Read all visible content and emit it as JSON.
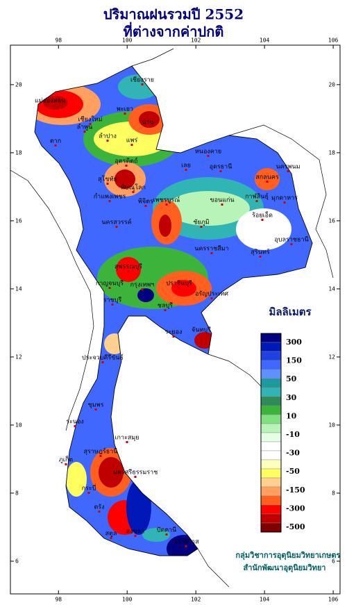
{
  "header": {
    "title": "ปริมาณฝนรวมปี 2552",
    "subtitle": "ที่ต่างจากค่าปกติ"
  },
  "map": {
    "xlim": [
      96.6,
      106.2
    ],
    "ylim": [
      5.04,
      21.16
    ],
    "xticks": [
      98,
      100,
      102,
      104,
      106
    ],
    "yticks": [
      20,
      18,
      16,
      14,
      12,
      10,
      8,
      6
    ],
    "places": [
      "เชียงราย",
      "แม่ฮ่องสอน",
      "เชียงใหม่",
      "พะเยา",
      "น่าน",
      "ลำพูน",
      "ลำปาง",
      "แพร่",
      "ตาก",
      "อุตรดิตถ์",
      "หนองคาย",
      "อุดรธานี",
      "เลย",
      "สกลนคร",
      "นครพนม",
      "มุกดาหาร",
      "สุโขทัย",
      "พิษณุโลก",
      "กำแพงเพชร",
      "พิจิตร",
      "เพชรบูรณ์",
      "ขอนแก่น",
      "กาฬสินธุ์",
      "นครสวรรค์",
      "ชัยภูมิ",
      "ร้อยเอ็ด",
      "อุบลราชธานี",
      "นครราชสีมา",
      "สุรินทร์",
      "สุพรรณบุรี",
      "กาญจนบุรี",
      "กรุงเทพฯ",
      "ปราจีนบุรี",
      "อรัญประเทศ",
      "ราชบุรี",
      "ชลบุรี",
      "ระยอง",
      "จันทบุรี",
      "ประจวบคีรีขันธ์",
      "ชุมพร",
      "ระนอง",
      "เกาะสมุย",
      "สุราษฎร์ธานี",
      "นครศรีธรรมราช",
      "ภูเก็ต",
      "กระบี่",
      "ตรัง",
      "สงขลา",
      "สตูล",
      "ปัตตานี",
      "นราธิวาส"
    ]
  },
  "legend": {
    "title": "มิลลิเมตร",
    "labels": [
      300,
      150,
      50,
      30,
      10,
      -10,
      -30,
      -50,
      -150,
      -300,
      -500
    ],
    "colors": [
      "#000080",
      "#0018b8",
      "#2040e0",
      "#4068ff",
      "#6090ff",
      "#1e9a9a",
      "#30b4b4",
      "#2e8b57",
      "#3cb43c",
      "#80e080",
      "#b8f4b8",
      "#e4ffe4",
      "#ffffff",
      "#ffffff",
      "#ffffc0",
      "#ffff60",
      "#ffd090",
      "#ffa060",
      "#ff6020",
      "#ff0000",
      "#c00000",
      "#800000"
    ]
  },
  "credits": {
    "line1": "กลุ่มวิชาการอุตุนิยมวิทยาเกษตร",
    "line2": "สำนักพัฒนาอุตุนิยมวิทยา"
  }
}
